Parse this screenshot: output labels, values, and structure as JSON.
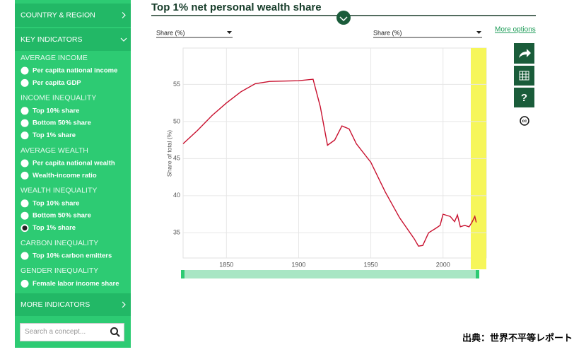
{
  "sidebar": {
    "sections": [
      {
        "title": "COUNTRY & REGION"
      },
      {
        "title": "KEY INDICATORS",
        "groups": [
          {
            "title": "AVERAGE INCOME",
            "items": [
              {
                "label": "Per capita national income"
              },
              {
                "label": "Per capita GDP"
              }
            ]
          },
          {
            "title": "INCOME INEQUALITY",
            "items": [
              {
                "label": "Top 10% share"
              },
              {
                "label": "Bottom 50% share"
              },
              {
                "label": "Top 1% share"
              }
            ]
          },
          {
            "title": "AVERAGE WEALTH",
            "items": [
              {
                "label": "Per capita national wealth"
              },
              {
                "label": "Wealth-income ratio"
              }
            ]
          },
          {
            "title": "WEALTH INEQUALITY",
            "items": [
              {
                "label": "Top 10% share"
              },
              {
                "label": "Bottom 50% share"
              },
              {
                "label": "Top 1% share",
                "checked": true
              }
            ]
          },
          {
            "title": "CARBON INEQUALITY",
            "items": [
              {
                "label": "Top 10% carbon emitters"
              }
            ]
          },
          {
            "title": "GENDER INEQUALITY",
            "items": [
              {
                "label": "Female labor income share"
              }
            ]
          }
        ]
      },
      {
        "title": "MORE INDICATORS"
      }
    ],
    "search_placeholder": "Search a concept..."
  },
  "controls": {
    "left_select": "Share (%)",
    "right_select": "Share (%)",
    "more_options": "More options"
  },
  "footer": "出典：世界不平等レポート",
  "chart_data": {
    "type": "line",
    "title": "Top 1% net personal wealth share",
    "y_label": "Share of total (%)",
    "x": [
      1820,
      1830,
      1840,
      1850,
      1860,
      1870,
      1880,
      1900,
      1910,
      1915,
      1920,
      1925,
      1930,
      1935,
      1940,
      1950,
      1960,
      1970,
      1980,
      1983,
      1986,
      1990,
      1995,
      1998,
      2000,
      2005,
      2008,
      2010,
      2012,
      2015,
      2018,
      2020,
      2022,
      2023
    ],
    "series": [
      {
        "color": "#c8102e",
        "values": [
          47.0,
          48.8,
          50.8,
          52.5,
          54.0,
          55.1,
          55.4,
          55.5,
          55.7,
          52.0,
          46.8,
          47.5,
          49.4,
          49.0,
          47.0,
          44.5,
          40.5,
          37.0,
          34.2,
          33.2,
          33.3,
          35.0,
          35.6,
          36.0,
          37.5,
          37.2,
          36.5,
          37.4,
          35.8,
          36.0,
          35.8,
          36.4,
          37.2,
          36.4
        ]
      }
    ],
    "xlim": [
      1820,
      2030
    ],
    "ylim": [
      31.6,
      59.9
    ],
    "xticks": [
      1850,
      1900,
      1950,
      2000
    ],
    "yticks": [
      35,
      40,
      45,
      50,
      55
    ],
    "grid": true
  }
}
